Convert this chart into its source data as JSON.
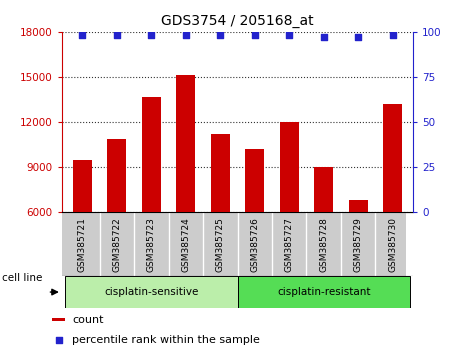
{
  "title": "GDS3754 / 205168_at",
  "samples": [
    "GSM385721",
    "GSM385722",
    "GSM385723",
    "GSM385724",
    "GSM385725",
    "GSM385726",
    "GSM385727",
    "GSM385728",
    "GSM385729",
    "GSM385730"
  ],
  "counts": [
    9500,
    10900,
    13700,
    15100,
    11200,
    10200,
    12000,
    9000,
    6800,
    13200
  ],
  "percentile_ranks": [
    98,
    98,
    98,
    98,
    98,
    98,
    98,
    97,
    97,
    98
  ],
  "bar_color": "#cc0000",
  "dot_color": "#2222cc",
  "ylim_left": [
    6000,
    18000
  ],
  "yticks_left": [
    6000,
    9000,
    12000,
    15000,
    18000
  ],
  "ylim_right": [
    0,
    100
  ],
  "yticks_right": [
    0,
    25,
    50,
    75,
    100
  ],
  "groups": [
    {
      "label": "cisplatin-sensitive",
      "indices": [
        0,
        1,
        2,
        3,
        4
      ],
      "color": "#bbeeaa"
    },
    {
      "label": "cisplatin-resistant",
      "indices": [
        5,
        6,
        7,
        8,
        9
      ],
      "color": "#55dd55"
    }
  ],
  "group_label": "cell line",
  "legend_count_label": "count",
  "legend_pct_label": "percentile rank within the sample",
  "bar_width": 0.55,
  "tick_area_color": "#cccccc",
  "grid_color": "#333333",
  "spine_color": "#000000"
}
